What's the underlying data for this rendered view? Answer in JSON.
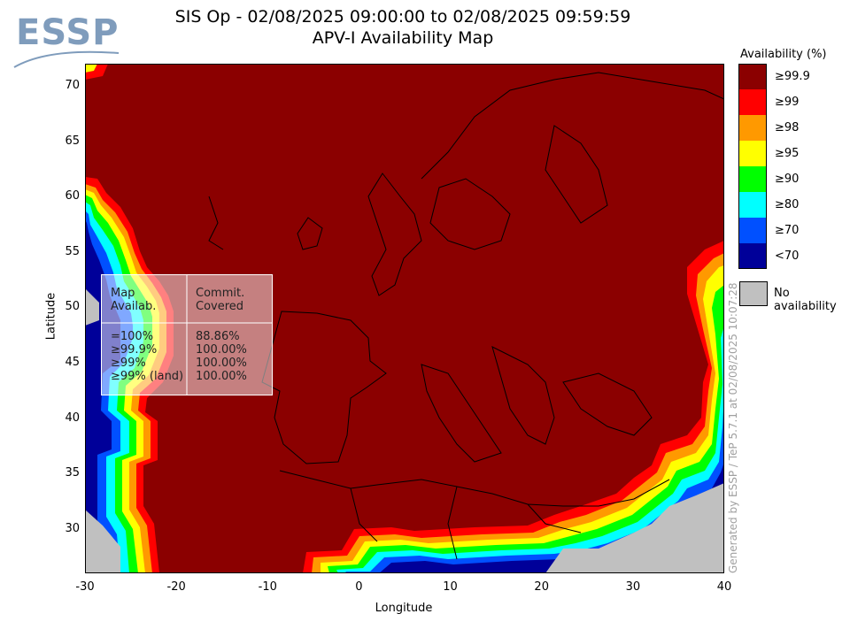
{
  "logo": {
    "text": "ESSP"
  },
  "title": {
    "line1": "SIS Op - 02/08/2025 09:00:00 to 02/08/2025 09:59:59",
    "line2": "APV-I Availability Map"
  },
  "axes": {
    "xlabel": "Longitude",
    "ylabel": "Latitude",
    "xticks": [
      "-30",
      "-20",
      "-10",
      "0",
      "10",
      "20",
      "30",
      "40"
    ],
    "yticks": [
      "70",
      "65",
      "60",
      "55",
      "50",
      "45",
      "40",
      "35",
      "30"
    ],
    "xlim": [
      -30,
      40
    ],
    "ylim": [
      26,
      72
    ]
  },
  "legend": {
    "title": "Availability (%)",
    "items": [
      {
        "label": "≥99.9",
        "color": "#8b0000"
      },
      {
        "label": "≥99",
        "color": "#ff0000"
      },
      {
        "label": "≥98",
        "color": "#ff9900"
      },
      {
        "label": "≥95",
        "color": "#ffff00"
      },
      {
        "label": "≥90",
        "color": "#00ff00"
      },
      {
        "label": "≥80",
        "color": "#00ffff"
      },
      {
        "label": "≥70",
        "color": "#0050ff"
      },
      {
        "label": "<70",
        "color": "#000099"
      }
    ],
    "no_data_label": "No availability",
    "no_data_color": "#c0c0c0"
  },
  "stats": {
    "col1_header": "Map\nAvailab.",
    "col2_header": "Commit.\nCovered",
    "rows_left": "=100%\n≥99.9%\n≥99%\n≥99% (land)",
    "rows_right": "88.86%\n100.00%\n100.00%\n100.00%"
  },
  "footer": {
    "generated": "Generated by ESSP / TeP 5.7.1 at 02/08/2025 10:07:28"
  }
}
